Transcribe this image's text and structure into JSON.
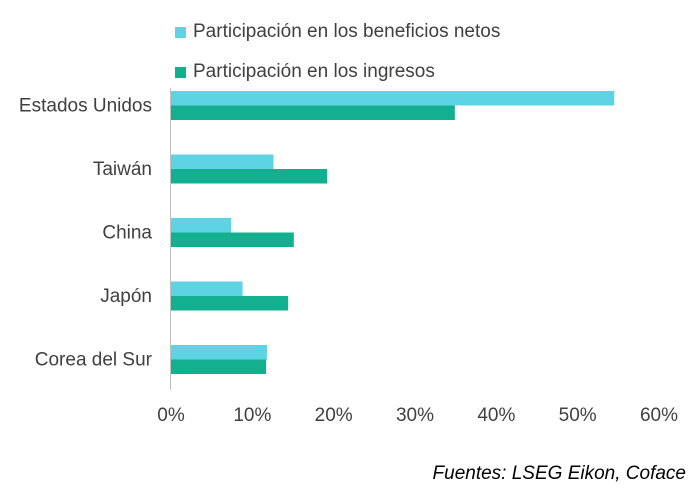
{
  "legend": [
    {
      "label": "Participación en los beneficios netos",
      "color": "#5dd3e3"
    },
    {
      "label": "Participación en los ingresos",
      "color": "#12b08e"
    }
  ],
  "source": "Fuentes: LSEG Eikon, Coface",
  "chart_data": {
    "type": "bar",
    "orientation": "horizontal",
    "categories": [
      "Estados Unidos",
      "Taiwán",
      "China",
      "Japón",
      "Corea del Sur"
    ],
    "series": [
      {
        "name": "Participación en los beneficios netos",
        "color": "#5dd3e3",
        "values": [
          54.5,
          12.6,
          7.4,
          8.8,
          11.8
        ]
      },
      {
        "name": "Participación en los ingresos",
        "color": "#12b08e",
        "values": [
          34.9,
          19.2,
          15.1,
          14.4,
          11.7
        ]
      }
    ],
    "xlim": [
      0,
      60
    ],
    "xticks": [
      "0%",
      "10%",
      "20%",
      "30%",
      "40%",
      "50%",
      "60%"
    ],
    "legend_position": "top",
    "grid": false
  }
}
